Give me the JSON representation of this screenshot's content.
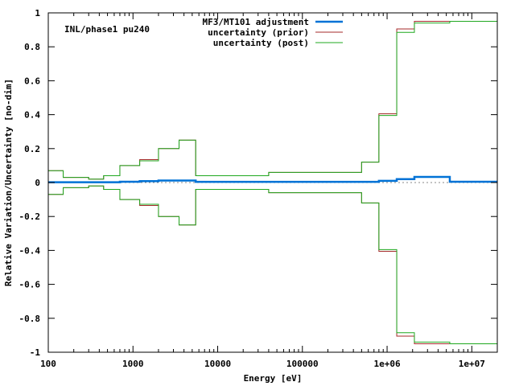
{
  "chart_data": {
    "type": "line",
    "annotation": "INL/phase1 pu240",
    "xlabel": "Energy [eV]",
    "ylabel": "Relative Variation/Uncertainty [no-dim]",
    "xscale": "log",
    "xlim": [
      100,
      20000000
    ],
    "ylim": [
      -1,
      1
    ],
    "legend_position": "top-right",
    "grid": false,
    "x_tick_labels": [
      "100",
      "1000",
      "10000",
      "100000",
      "1e+06",
      "1e+07"
    ],
    "x_ticks": [
      100,
      1000,
      10000,
      100000,
      1000000,
      10000000
    ],
    "y_tick_labels": [
      "-1",
      "-0.8",
      "-0.6",
      "-0.4",
      "-0.2",
      "0",
      "0.2",
      "0.4",
      "0.6",
      "0.8",
      "1"
    ],
    "y_ticks": [
      -1,
      -0.8,
      -0.6,
      -0.4,
      -0.2,
      0,
      0.2,
      0.4,
      0.6,
      0.8,
      1
    ],
    "bin_edges": [
      100,
      150,
      300,
      450,
      700,
      1200,
      2000,
      3500,
      5500,
      40000,
      500000,
      800000,
      1300000,
      2100000,
      5500000,
      20000000
    ],
    "series": [
      {
        "name": "MF3/MT101 adjustment",
        "color": "#0072d6",
        "style": "thick-step",
        "values": [
          0.002,
          0.002,
          0.002,
          0.002,
          0.005,
          0.008,
          0.012,
          0.012,
          0.004,
          0.004,
          0.004,
          0.01,
          0.02,
          0.033,
          0.005
        ]
      },
      {
        "name": "uncertainty (prior)",
        "color": "#a52a2a",
        "style": "symmetric-step",
        "values": [
          0.07,
          0.03,
          0.02,
          0.04,
          0.1,
          0.135,
          0.2,
          0.25,
          0.04,
          0.06,
          0.12,
          0.405,
          0.905,
          0.95,
          0.95
        ]
      },
      {
        "name": "uncertainty (post)",
        "color": "#1fa81f",
        "style": "symmetric-step",
        "values": [
          0.07,
          0.03,
          0.02,
          0.04,
          0.1,
          0.128,
          0.2,
          0.25,
          0.04,
          0.06,
          0.12,
          0.395,
          0.885,
          0.94,
          0.95
        ]
      }
    ],
    "zero_line": true
  }
}
